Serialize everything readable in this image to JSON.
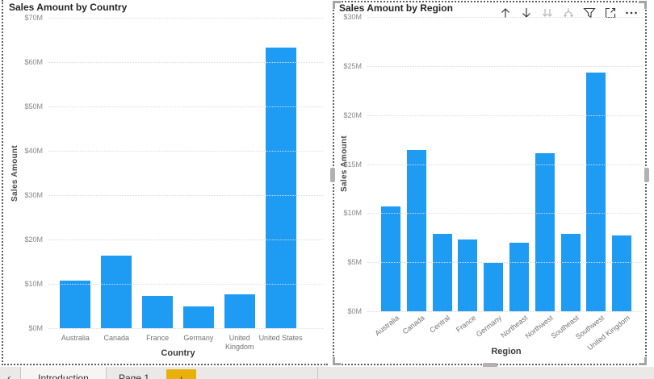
{
  "colors": {
    "bar": "#1E9BF2",
    "selection_border": "#5F5F5F",
    "gridline": "#DCDCDC",
    "add_page_bg": "#E8B109",
    "tab_bar_bg": "#EBE9E7"
  },
  "chart_data": [
    {
      "type": "bar",
      "title": "Sales Amount by Country",
      "xlabel": "Country",
      "ylabel": "Sales Amount",
      "categories": [
        "Australia",
        "Canada",
        "France",
        "Germany",
        "United Kingdom",
        "United States"
      ],
      "values": [
        10.7,
        16.4,
        7.3,
        4.9,
        7.7,
        63.2
      ],
      "ylim": [
        0,
        70
      ],
      "grid": true,
      "legend": "none",
      "label_rotation": "horizontal",
      "yticks": [
        {
          "value": 70,
          "label": "$70M"
        },
        {
          "value": 60,
          "label": "$60M"
        },
        {
          "value": 50,
          "label": "$50M"
        },
        {
          "value": 40,
          "label": "$40M"
        },
        {
          "value": 30,
          "label": "$30M"
        },
        {
          "value": 20,
          "label": "$20M"
        },
        {
          "value": 10,
          "label": "$10M"
        },
        {
          "value": 0,
          "label": "$0M"
        }
      ]
    },
    {
      "type": "bar",
      "title": "Sales Amount by Region",
      "xlabel": "Region",
      "ylabel": "Sales Amount",
      "categories": [
        "Australia",
        "Canada",
        "Central",
        "France",
        "Germany",
        "Northeast",
        "Northwest",
        "Southeast",
        "Southwest",
        "United Kingdom"
      ],
      "values": [
        10.7,
        16.4,
        7.9,
        7.3,
        4.9,
        7.0,
        16.1,
        7.9,
        24.3,
        7.7
      ],
      "ylim": [
        0,
        30
      ],
      "grid": true,
      "legend": "none",
      "label_rotation": "rotated",
      "yticks": [
        {
          "value": 30,
          "label": "$30M"
        },
        {
          "value": 25,
          "label": "$25M"
        },
        {
          "value": 20,
          "label": "$20M"
        },
        {
          "value": 15,
          "label": "$15M"
        },
        {
          "value": 10,
          "label": "$10M"
        },
        {
          "value": 5,
          "label": "$5M"
        },
        {
          "value": 0,
          "label": "$0M"
        }
      ]
    }
  ],
  "visual_header": {
    "icons": [
      "drill-up",
      "drill-down",
      "go-to-next-level",
      "expand-all-down",
      "filters",
      "focus-mode",
      "more-options"
    ]
  },
  "tab_bar": {
    "back_chevron": "‹",
    "tabs": [
      "Introduction",
      "Page 1"
    ],
    "add_page": "+"
  }
}
